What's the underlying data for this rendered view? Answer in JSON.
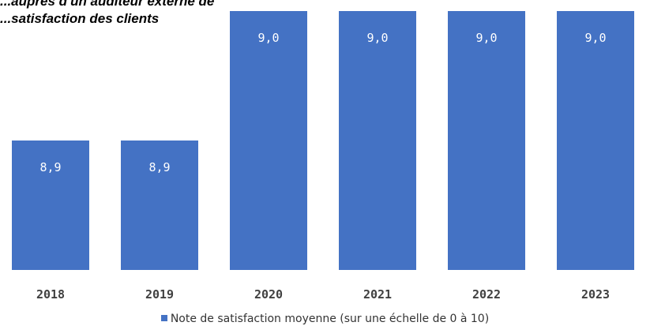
{
  "chart_data": {
    "type": "bar",
    "title_lines": [
      "...auprès d'un auditeur externe de",
      "...satisfaction des clients"
    ],
    "categories": [
      "2018",
      "2019",
      "2020",
      "2021",
      "2022",
      "2023"
    ],
    "series": [
      {
        "name": "Note de satisfaction moyenne (sur une échelle de 0 à 10)",
        "values": [
          8.9,
          8.9,
          9.0,
          9.0,
          9.0,
          9.0
        ],
        "labels": [
          "8,9",
          "8,9",
          "9,0",
          "9,0",
          "9,0",
          "9,0"
        ],
        "color": "#4472C4"
      }
    ],
    "ylim": [
      8.8,
      9.0
    ],
    "grid": false,
    "legend_position": "bottom",
    "value_label_color": "#FFFFFF",
    "tick_label_color": "#404040"
  }
}
